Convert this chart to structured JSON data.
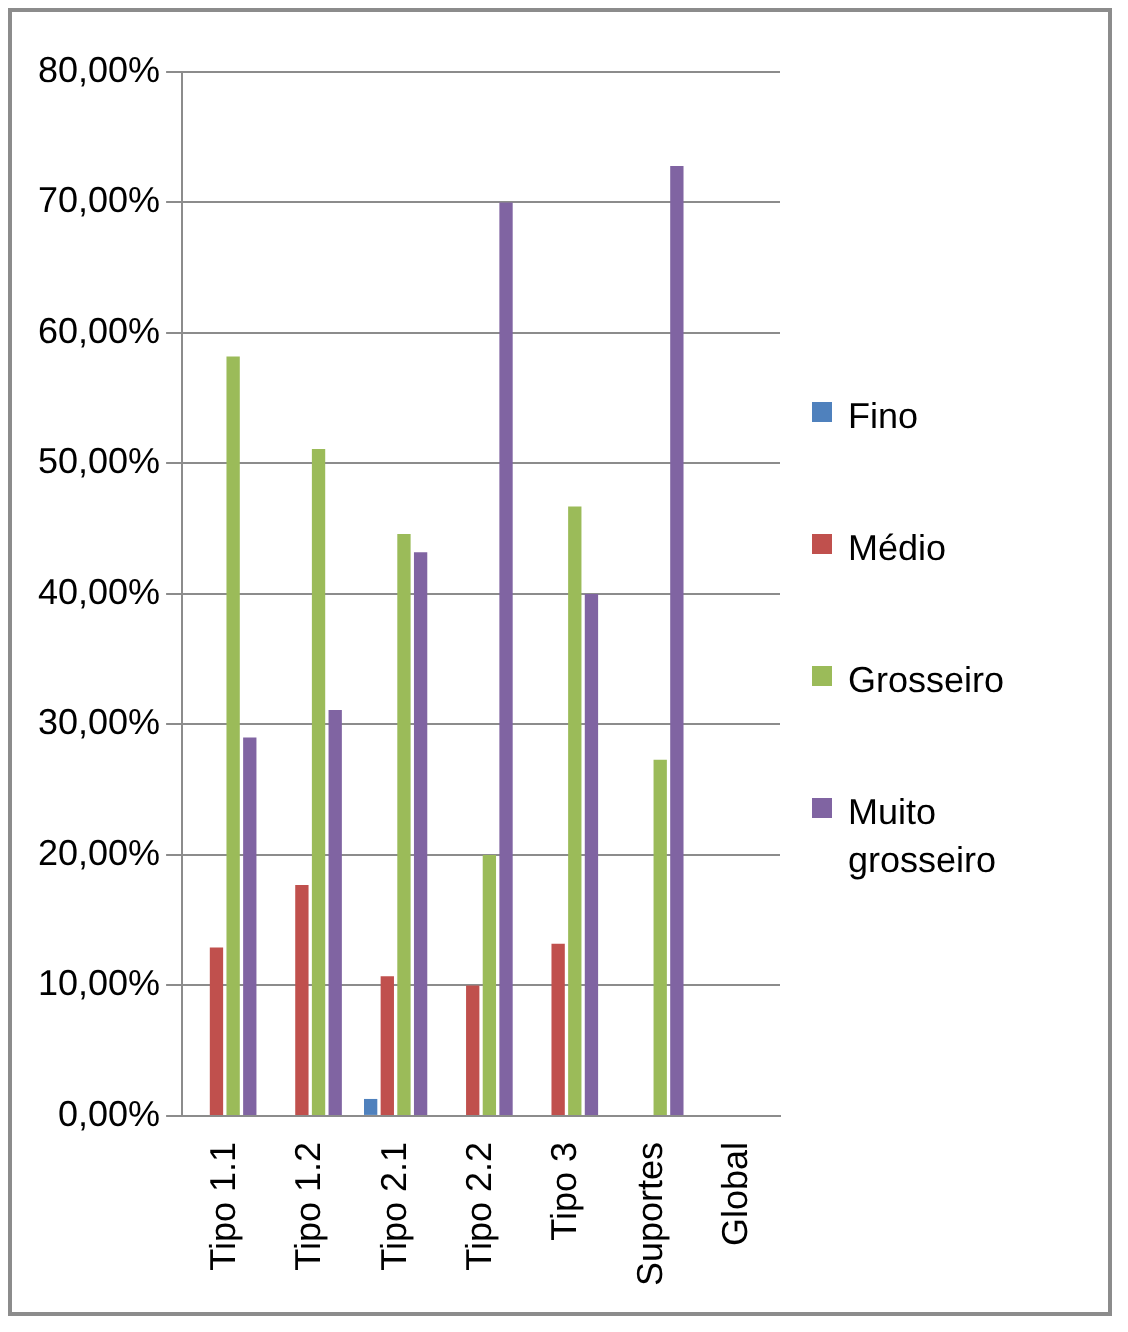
{
  "chart_data": {
    "type": "bar",
    "categories": [
      "Tipo 1.1",
      "Tipo 1.2",
      "Tipo 2.1",
      "Tipo 2.2",
      "Tipo 3",
      "Suportes",
      "Global"
    ],
    "series": [
      {
        "name": "Fino",
        "color": "#4f81bd",
        "values": [
          null,
          null,
          1.3,
          null,
          null,
          null,
          null
        ]
      },
      {
        "name": "Médio",
        "color": "#c0504d",
        "values": [
          12.9,
          17.7,
          10.7,
          10.0,
          13.2,
          null,
          null
        ]
      },
      {
        "name": "Grosseiro",
        "color": "#9bbb59",
        "values": [
          58.2,
          51.1,
          44.6,
          20.0,
          46.7,
          27.3,
          null
        ]
      },
      {
        "name": "Muito grosseiro",
        "color": "#8064a2",
        "values": [
          29.0,
          31.1,
          43.2,
          70.0,
          40.0,
          72.8,
          null
        ]
      }
    ],
    "ylim": [
      0,
      80
    ],
    "yticks": [
      {
        "value": 0,
        "label": "0,00%"
      },
      {
        "value": 10,
        "label": "10,00%"
      },
      {
        "value": 20,
        "label": "20,00%"
      },
      {
        "value": 30,
        "label": "30,00%"
      },
      {
        "value": 40,
        "label": "40,00%"
      },
      {
        "value": 50,
        "label": "50,00%"
      },
      {
        "value": 60,
        "label": "60,00%"
      },
      {
        "value": 70,
        "label": "70,00%"
      },
      {
        "value": 80,
        "label": "80,00%"
      }
    ],
    "grid": "y",
    "legend": "right"
  }
}
